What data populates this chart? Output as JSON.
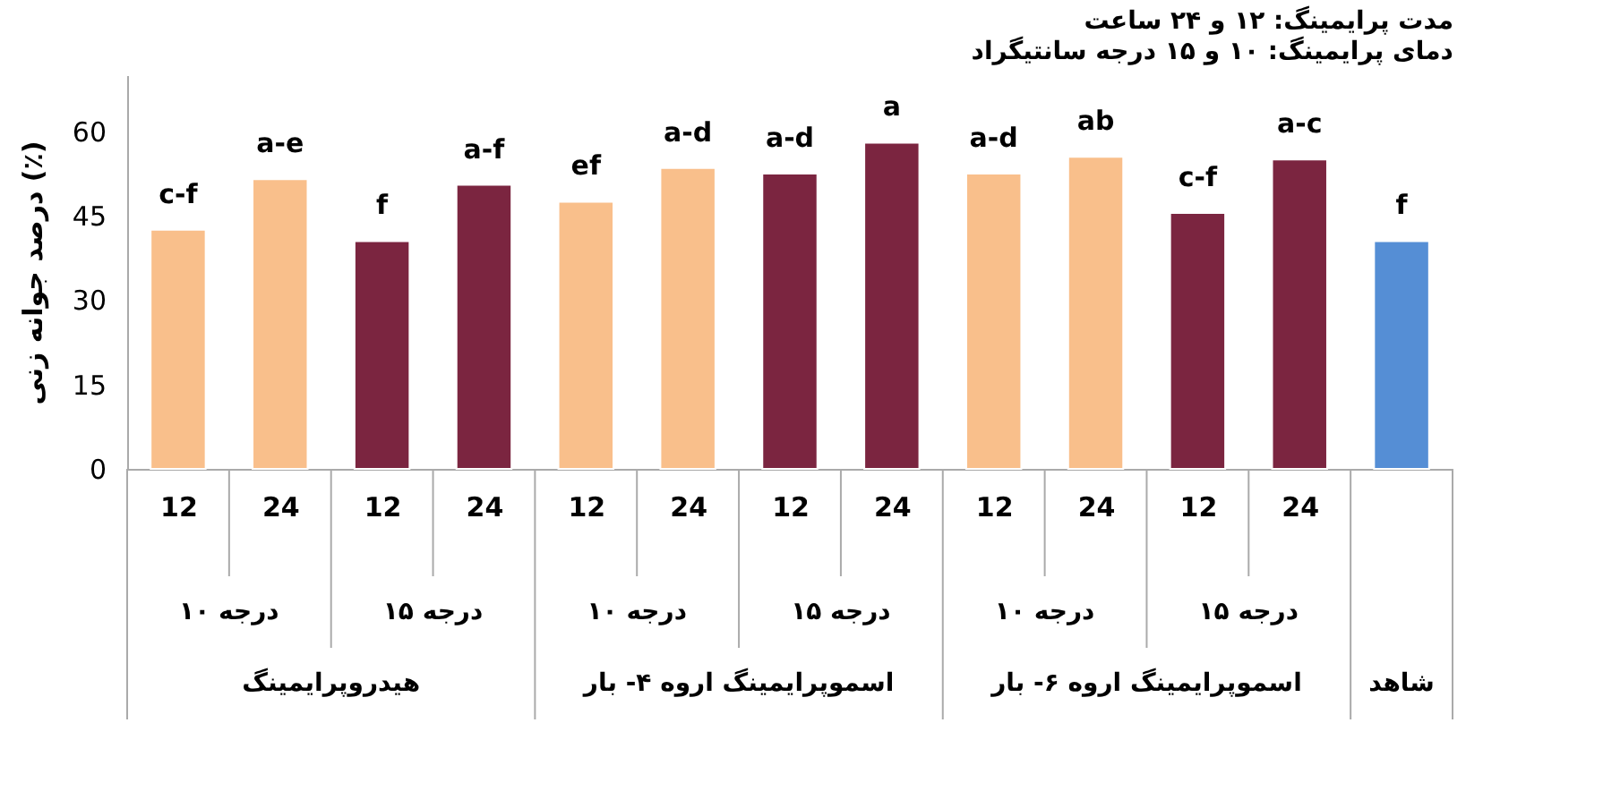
{
  "chart_data": {
    "type": "bar",
    "title": "مدت پرایمینگ: ۱۲ و ۲۴ ساعت",
    "subtitle": "دمای پرایمینگ: ۱۰ و ۱۵ درجه سانتیگراد",
    "ylabel": "درصد جوانه زنی (٪)",
    "categories": [
      "12",
      "24",
      "12",
      "24",
      "12",
      "24",
      "12",
      "24",
      "12",
      "24",
      "12",
      "24",
      null
    ],
    "values": [
      42.5,
      51.5,
      40.5,
      50.5,
      47.5,
      53.5,
      52.5,
      58,
      52.5,
      55.5,
      45.5,
      55,
      40.5
    ],
    "colors": [
      "#f9bf8b",
      "#f9bf8b",
      "#7b2540",
      "#7b2540",
      "#f9bf8b",
      "#f9bf8b",
      "#7b2540",
      "#7b2540",
      "#f9bf8b",
      "#f9bf8b",
      "#7b2540",
      "#7b2540",
      "#558ed5"
    ],
    "value_labels": [
      "c-f",
      "a-e",
      "f",
      "a-f",
      "ef",
      "a-d",
      "a-d",
      "a",
      "a-d",
      "ab",
      "c-f",
      "a-c",
      "f"
    ],
    "annotations": [
      "۱۰ درجه",
      "۱۵ درجه",
      "۱۰ درجه",
      "۱۵ درجه",
      "۱۰ درجه",
      "۱۵ درجه",
      "هیدروپرایمینگ",
      "اسموپرایمینگ اروه ۴- بار",
      "اسموپرایمینگ اروه ۶- بار",
      "شاهد"
    ],
    "ylim": [
      0,
      70
    ],
    "yticks": [
      0,
      15,
      30,
      45,
      60
    ],
    "grid": false
  }
}
